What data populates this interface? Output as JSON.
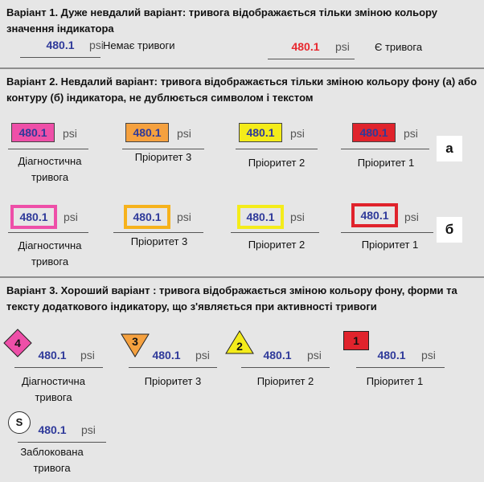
{
  "section1": {
    "title": "Варіант 1. Дуже невдалий варіант: тривога відображається тільки зміною кольору значення індикатора",
    "items": [
      {
        "value": "480.1",
        "unit": "psi",
        "label": "Немає тривоги",
        "color": "#2f3a9a"
      },
      {
        "value": "480.1",
        "unit": "psi",
        "label": "Є тривога",
        "color": "#e8282e"
      }
    ]
  },
  "section2": {
    "title": "Варіант 2. Невдалий варіант: тривога відображається тільки зміною кольору фону (а) або контуру (б) індикатора, не дублюється символом і текстом",
    "row_a_letter": "а",
    "row_b_letter": "б",
    "items": [
      {
        "value": "480.1",
        "unit": "psi",
        "label": "Діагностична тривога",
        "color": "#ee4fa8"
      },
      {
        "value": "480.1",
        "unit": "psi",
        "label": "Пріоритет 3",
        "color": "#f5a13f"
      },
      {
        "value": "480.1",
        "unit": "psi",
        "label": "Пріоритет 2",
        "color": "#f4ec1a"
      },
      {
        "value": "480.1",
        "unit": "psi",
        "label": "Пріоритет 1",
        "color": "#e0232c"
      }
    ]
  },
  "section3": {
    "title": "Варіант 3. Хороший варіант : тривога відображається зміною кольору фону, форми та тексту додаткового індикатору, що з'являється при активності тривоги",
    "items": [
      {
        "value": "480.1",
        "unit": "psi",
        "label": "Діагностична тривога",
        "badge": "4",
        "shape": "diamond",
        "color": "#ee4fa8"
      },
      {
        "value": "480.1",
        "unit": "psi",
        "label": "Пріоритет 3",
        "badge": "3",
        "shape": "triangle-down",
        "color": "#f5a13f"
      },
      {
        "value": "480.1",
        "unit": "psi",
        "label": "Пріоритет 2",
        "badge": "2",
        "shape": "triangle-up",
        "color": "#f4ec1a"
      },
      {
        "value": "480.1",
        "unit": "psi",
        "label": "Пріоритет 1",
        "badge": "1",
        "shape": "square",
        "color": "#e0232c"
      },
      {
        "value": "480.1",
        "unit": "psi",
        "label": "Заблокована тривога",
        "badge": "S",
        "shape": "circle",
        "color": "#ffffff"
      }
    ]
  }
}
